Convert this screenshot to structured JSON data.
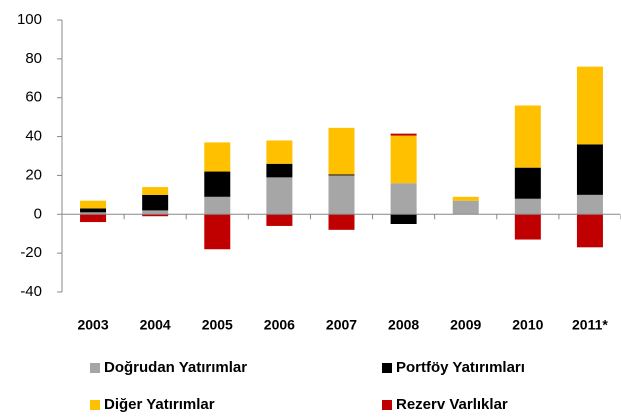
{
  "chart_data": {
    "type": "stacked_bar",
    "categories": [
      "2003",
      "2004",
      "2005",
      "2006",
      "2007",
      "2008",
      "2009",
      "2010",
      "2011*"
    ],
    "series": [
      {
        "name": "Doğrudan Yatırımlar",
        "color": "#a6a6a6",
        "values": [
          1,
          2,
          9,
          19,
          20,
          16,
          7,
          8,
          10
        ]
      },
      {
        "name": "Portföy Yatırımları",
        "color": "#000000",
        "values": [
          2,
          8,
          13,
          7,
          0.5,
          -5,
          0,
          16,
          26
        ]
      },
      {
        "name": "Diğer Yatırımlar",
        "color": "#ffc000",
        "values": [
          4,
          4,
          15,
          12,
          24,
          24.5,
          2,
          32,
          40
        ]
      },
      {
        "name": "Rezerv Varlıklar",
        "color": "#c00000",
        "values": [
          -4,
          -1,
          -18,
          -6,
          -8,
          1,
          0,
          -13,
          -17
        ]
      }
    ],
    "ylim": [
      -40,
      100
    ],
    "yticks": [
      -40,
      -20,
      0,
      20,
      40,
      60,
      80,
      100
    ]
  }
}
